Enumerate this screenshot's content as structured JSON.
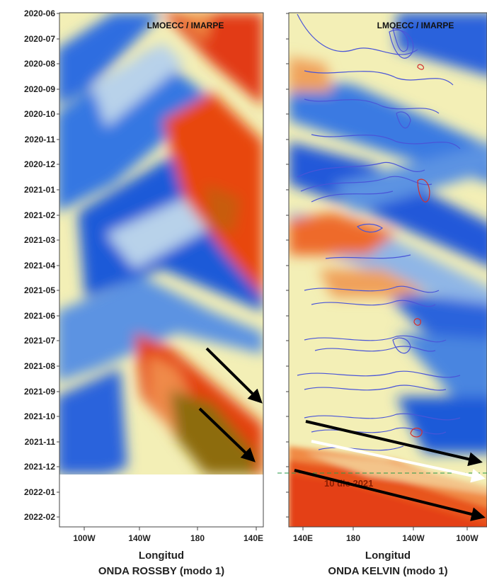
{
  "chart_data": [
    {
      "type": "heatmap",
      "title": "ONDA ROSSBY (modo 1)",
      "xlabel": "Longitud",
      "ylabel": "",
      "watermark": "LMOECC / IMARPE",
      "x_tick_labels": [
        "100W",
        "140W",
        "180",
        "140E"
      ],
      "x_direction": "east-to-west",
      "y_tick_labels": [
        "2020-06",
        "2020-07",
        "2020-08",
        "2020-09",
        "2020-10",
        "2020-11",
        "2020-12",
        "2021-01",
        "2021-02",
        "2021-03",
        "2021-04",
        "2021-05",
        "2021-06",
        "2021-07",
        "2021-08",
        "2021-09",
        "2021-10",
        "2021-11",
        "2021-12",
        "2022-01",
        "2022-02"
      ],
      "ylim": [
        "2020-06",
        "2022-02"
      ],
      "data_end": "2021-12",
      "colorscale": [
        "#1450d8",
        "#5a8fe0",
        "#b9d3ea",
        "#f7f0b2",
        "#f5a35a",
        "#e23b10",
        "#8a6d0a"
      ],
      "arrows": 2
    },
    {
      "type": "heatmap",
      "title": "ONDA KELVIN (modo 1)",
      "xlabel": "Longitud",
      "ylabel": "",
      "watermark": "LMOECC / IMARPE",
      "x_tick_labels": [
        "140E",
        "180",
        "140W",
        "100W"
      ],
      "x_direction": "west-to-east",
      "y_tick_labels": [
        "2020-06",
        "2020-07",
        "2020-08",
        "2020-09",
        "2020-10",
        "2020-11",
        "2020-12",
        "2021-01",
        "2021-02",
        "2021-03",
        "2021-04",
        "2021-05",
        "2021-06",
        "2021-07",
        "2021-08",
        "2021-09",
        "2021-10",
        "2021-11",
        "2021-12",
        "2022-01",
        "2022-02"
      ],
      "ylim": [
        "2020-06",
        "2022-02"
      ],
      "annotation": "10 dic 2021",
      "contours": {
        "positive_color": "#4a55d8",
        "negative_color": "#d23030"
      },
      "arrows": {
        "black": 2,
        "white": 1
      }
    }
  ],
  "colors": {
    "arrow": "#000000",
    "arrow_white": "#ffffff",
    "annotation_line": "#2a9a4a"
  }
}
